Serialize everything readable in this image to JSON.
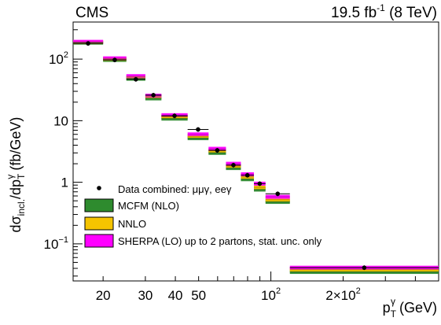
{
  "header": {
    "left": "CMS",
    "right_value": "19.5 fb",
    "right_exponent": "-1",
    "right_suffix": " (8 TeV)"
  },
  "chart_data": {
    "type": "scatter",
    "x_scale": "log",
    "y_scale": "log",
    "xlim": [
      15,
      500
    ],
    "ylim": [
      0.025,
      400
    ],
    "ylabel": "dσincl./dpTγ (fb/GeV)",
    "xlabel": "pTγ (GeV)",
    "ylabel_parts": {
      "a": "dσ",
      "sub1": "incl.",
      "b": "/dp",
      "sub2": "T",
      "sup2": "γ",
      "c": " (fb/GeV)"
    },
    "xlabel_parts": {
      "a": "p",
      "sub": "T",
      "sup": "γ",
      "c": " (GeV)"
    },
    "x_ticks": [
      {
        "value": 20,
        "label": "20"
      },
      {
        "value": 30,
        "label": "30"
      },
      {
        "value": 40,
        "label": "40"
      },
      {
        "value": 50,
        "label": "50"
      },
      {
        "value": 100,
        "label": "10",
        "exp": "2"
      },
      {
        "value": 200,
        "label": "2×10",
        "exp": "2"
      }
    ],
    "y_ticks": [
      {
        "value": 0.1,
        "label": "10",
        "exp": "−1"
      },
      {
        "value": 1,
        "label": "1"
      },
      {
        "value": 10,
        "label": "10"
      },
      {
        "value": 100,
        "label": "10",
        "exp": "2"
      }
    ],
    "bins": [
      {
        "lo": 15,
        "hi": 20,
        "data": 180,
        "mcfm": 185,
        "nnlo": 189,
        "sherpa": 191
      },
      {
        "lo": 20,
        "hi": 25,
        "data": 97,
        "mcfm": 97,
        "nnlo": 101,
        "sherpa": 103
      },
      {
        "lo": 25,
        "hi": 30,
        "data": 47,
        "mcfm": 48,
        "nnlo": 51,
        "sherpa": 53
      },
      {
        "lo": 30,
        "hi": 35,
        "data": 26,
        "mcfm": 23,
        "nnlo": 24.5,
        "sherpa": 25.5
      },
      {
        "lo": 35,
        "hi": 45,
        "data": 12,
        "mcfm": 10.8,
        "nnlo": 11.6,
        "sherpa": 12.3
      },
      {
        "lo": 45,
        "hi": 55,
        "data": 7.2,
        "mcfm": 5.2,
        "nnlo": 5.6,
        "sherpa": 6.0
      },
      {
        "lo": 55,
        "hi": 65,
        "data": 3.3,
        "mcfm": 3.0,
        "nnlo": 3.25,
        "sherpa": 3.5
      },
      {
        "lo": 65,
        "hi": 75,
        "data": 1.9,
        "mcfm": 1.7,
        "nnlo": 1.83,
        "sherpa": 2.0
      },
      {
        "lo": 75,
        "hi": 85,
        "data": 1.3,
        "mcfm": 1.12,
        "nnlo": 1.22,
        "sherpa": 1.35
      },
      {
        "lo": 85,
        "hi": 95,
        "data": 0.95,
        "mcfm": 0.76,
        "nnlo": 0.83,
        "sherpa": 0.95
      },
      {
        "lo": 95,
        "hi": 120,
        "data": 0.65,
        "mcfm": 0.48,
        "nnlo": 0.52,
        "sherpa": 0.58
      },
      {
        "lo": 120,
        "hi": 500,
        "data": 0.041,
        "mcfm": 0.035,
        "nnlo": 0.038,
        "sherpa": 0.041
      }
    ],
    "series": [
      {
        "key": "data",
        "name": "Data combined: μμγ, eeγ",
        "color": "#000000"
      },
      {
        "key": "mcfm",
        "name": "MCFM (NLO)",
        "color": "#2e8b2e"
      },
      {
        "key": "nnlo",
        "name": "NNLO",
        "color": "#f5c400"
      },
      {
        "key": "sherpa",
        "name": "SHERPA (LO) up to 2 partons, stat. unc. only",
        "color": "#ff00ff"
      }
    ],
    "legend_position": "bottom-left",
    "grid": false
  }
}
